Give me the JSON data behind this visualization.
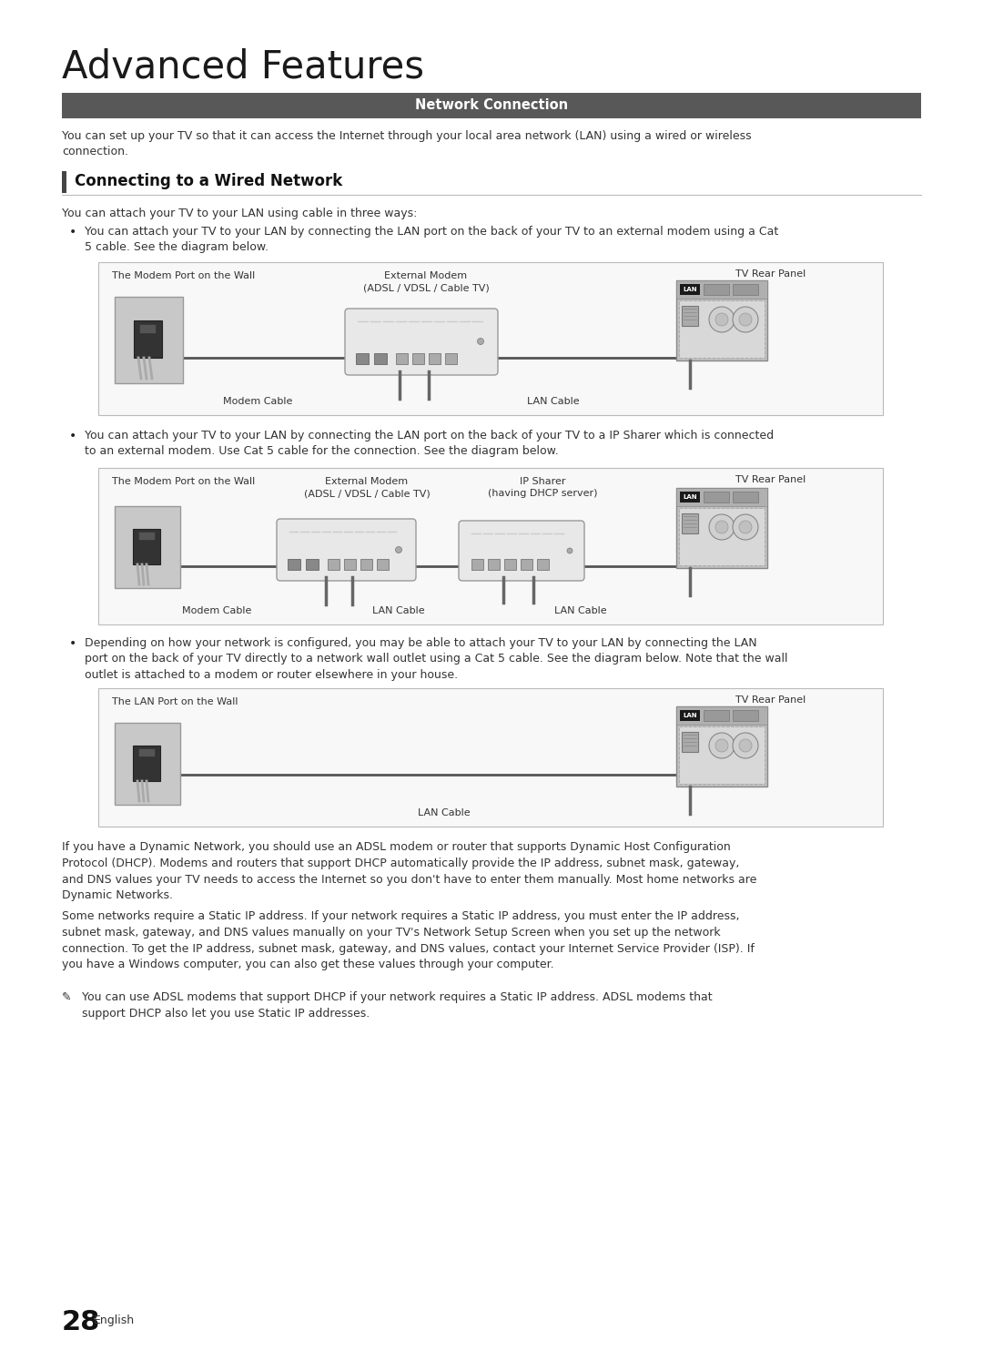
{
  "title": "Advanced Features",
  "section_header": "Network Connection",
  "section_header_bg": "#585858",
  "section_header_color": "#ffffff",
  "subsection_title": "Connecting to a Wired Network",
  "subsection_border_color": "#444444",
  "page_bg": "#ffffff",
  "body_text_color": "#222222",
  "intro_text": "You can set up your TV so that it can access the Internet through your local area network (LAN) using a wired or wireless\nconnection.",
  "subsection_intro": "You can attach your TV to your LAN using cable in three ways:",
  "bullet1_text": "You can attach your TV to your LAN by connecting the LAN port on the back of your TV to an external modem using a Cat\n5 cable. See the diagram below.",
  "bullet2_text": "You can attach your TV to your LAN by connecting the LAN port on the back of your TV to a IP Sharer which is connected\nto an external modem. Use Cat 5 cable for the connection. See the diagram below.",
  "bullet3_text": "Depending on how your network is configured, you may be able to attach your TV to your LAN by connecting the LAN\nport on the back of your TV directly to a network wall outlet using a Cat 5 cable. See the diagram below. Note that the wall\noutlet is attached to a modem or router elsewhere in your house.",
  "footer_text1": "If you have a Dynamic Network, you should use an ADSL modem or router that supports Dynamic Host Configuration\nProtocol (DHCP). Modems and routers that support DHCP automatically provide the IP address, subnet mask, gateway,\nand DNS values your TV needs to access the Internet so you don't have to enter them manually. Most home networks are\nDynamic Networks.",
  "footer_text2": "Some networks require a Static IP address. If your network requires a Static IP address, you must enter the IP address,\nsubnet mask, gateway, and DNS values manually on your TV's Network Setup Screen when you set up the network\nconnection. To get the IP address, subnet mask, gateway, and DNS values, contact your Internet Service Provider (ISP). If\nyou have a Windows computer, you can also get these values through your computer.",
  "footer_note": "You can use ADSL modems that support DHCP if your network requires a Static IP address. ADSL modems that\nsupport DHCP also let you use Static IP addresses.",
  "page_number": "28",
  "page_number_label": "English",
  "d1_wall_label": "The Modem Port on the Wall",
  "d1_modem_label": "External Modem\n(ADSL / VDSL / Cable TV)",
  "d1_tv_label": "TV Rear Panel",
  "d1_modem_cable": "Modem Cable",
  "d1_lan_cable": "LAN Cable",
  "d2_wall_label": "The Modem Port on the Wall",
  "d2_modem_label": "External Modem\n(ADSL / VDSL / Cable TV)",
  "d2_sharer_label": "IP Sharer\n(having DHCP server)",
  "d2_tv_label": "TV Rear Panel",
  "d2_modem_cable": "Modem Cable",
  "d2_lan_cable1": "LAN Cable",
  "d2_lan_cable2": "LAN Cable",
  "d3_wall_label": "The LAN Port on the Wall",
  "d3_tv_label": "TV Rear Panel",
  "d3_lan_cable": "LAN Cable",
  "box_bg": "#f8f8f8",
  "box_border": "#bbbbbb",
  "wall_fill": "#aaaaaa",
  "modem_fill": "#e0e0e0",
  "modem_top": "#d0d0d0",
  "tv_fill": "#c0c0c0",
  "tv_top_fill": "#b0b0b0",
  "lan_bg": "#1a1a1a",
  "cable_col": "#555555",
  "plug_col": "#888888"
}
